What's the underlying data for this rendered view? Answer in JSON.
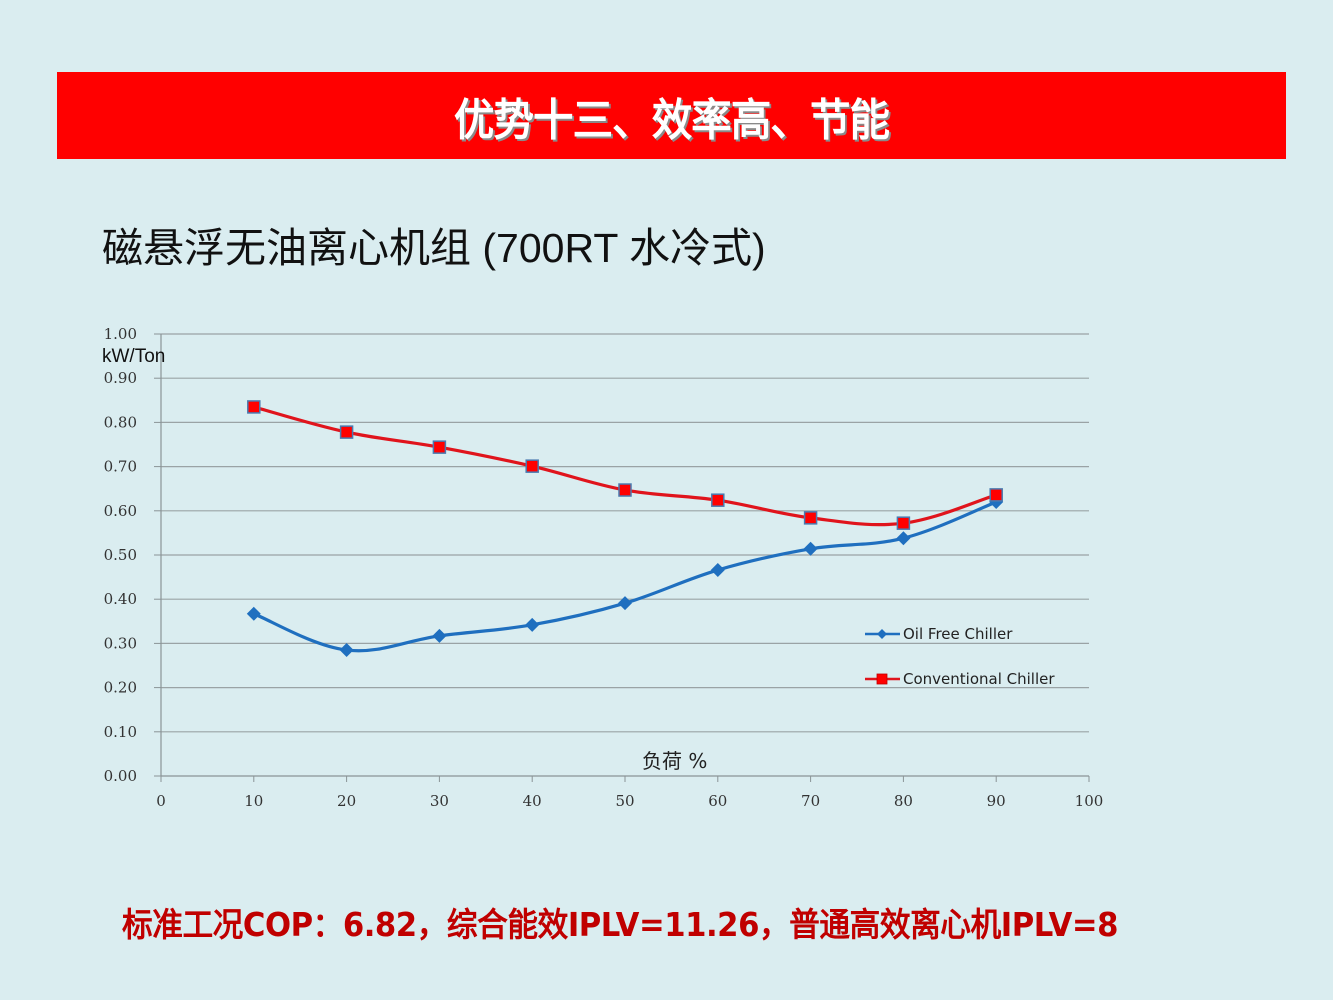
{
  "slide": {
    "banner_title": "优势十三、效率高、节能",
    "subtitle": "磁悬浮无油离心机组 (700RT 水冷式)",
    "footer_note": "标准工况COP：6.82，综合能效IPLV=11.26，普通高效离心机IPLV=8",
    "colors": {
      "background": "#daedf0",
      "banner": "#ff0000",
      "footer_text": "#c00000"
    }
  },
  "chart_data": {
    "type": "line",
    "title": "",
    "xlabel": "负荷 %",
    "ylabel": "kW/Ton",
    "xlim": [
      0,
      100
    ],
    "ylim": [
      0,
      1.0
    ],
    "x_ticks": [
      "0",
      "10",
      "20",
      "30",
      "40",
      "50",
      "60",
      "70",
      "80",
      "90",
      "100"
    ],
    "y_ticks": [
      "0.00",
      "0.10",
      "0.20",
      "0.30",
      "0.40",
      "0.50",
      "0.60",
      "0.70",
      "0.80",
      "0.90",
      "1.00"
    ],
    "grid": true,
    "legend_position": "right",
    "x": [
      10,
      20,
      30,
      40,
      50,
      60,
      70,
      80,
      90
    ],
    "series": [
      {
        "name": "Oil Free Chiller",
        "color": "#1f6fbf",
        "marker": "diamond",
        "values": [
          0.367,
          0.285,
          0.317,
          0.342,
          0.391,
          0.466,
          0.514,
          0.538,
          0.62
        ]
      },
      {
        "name": "Conventional Chiller",
        "color": "#e0141c",
        "marker": "square",
        "values": [
          0.835,
          0.778,
          0.744,
          0.701,
          0.647,
          0.624,
          0.584,
          0.572,
          0.636
        ]
      }
    ]
  }
}
